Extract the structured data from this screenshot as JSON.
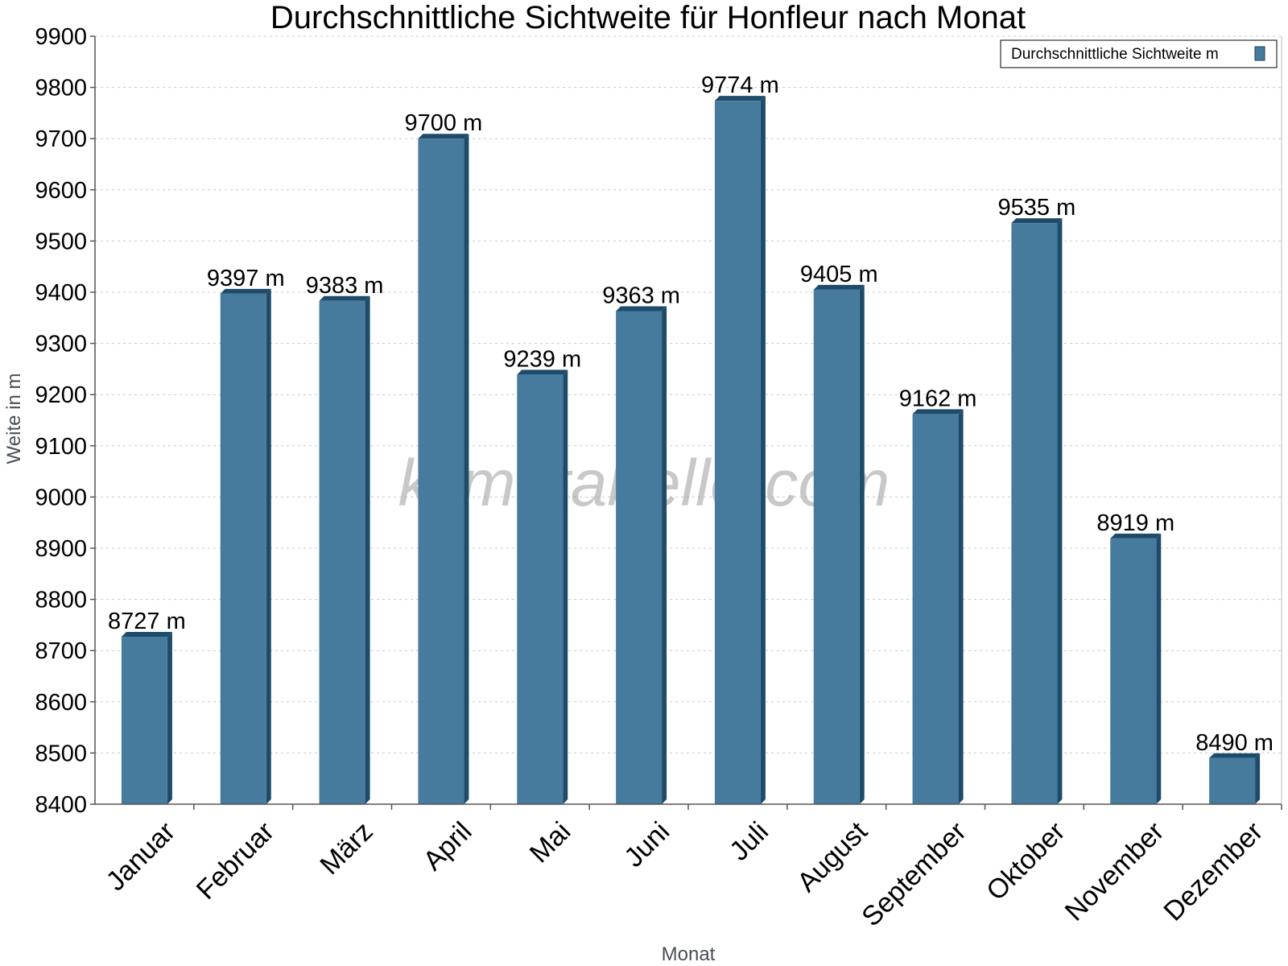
{
  "chart_data": {
    "type": "bar",
    "title": "Durchschnittliche Sichtweite für Honfleur nach Monat",
    "xlabel": "Monat",
    "ylabel": "Weite in m",
    "ylim": [
      8400,
      9900
    ],
    "ytick_step": 100,
    "grid": true,
    "legend_position": "top-right",
    "watermark": "klimatabelle.com",
    "bar_color": "#467b9e",
    "bar_side_color": "#1f4b6b",
    "value_suffix": " m",
    "categories": [
      "Januar",
      "Februar",
      "März",
      "April",
      "Mai",
      "Juni",
      "Juli",
      "August",
      "September",
      "Oktober",
      "November",
      "Dezember"
    ],
    "series": [
      {
        "name": "Durchschnittliche Sichtweite m",
        "values": [
          8727,
          9397,
          9383,
          9700,
          9239,
          9363,
          9774,
          9405,
          9162,
          9535,
          8919,
          8490
        ]
      }
    ]
  }
}
